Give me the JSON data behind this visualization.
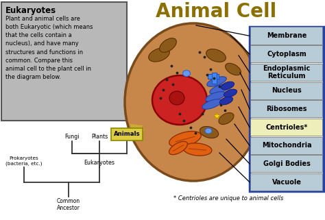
{
  "title": "Animal Cell",
  "title_color": "#8B7000",
  "title_fontsize": 20,
  "bg_color": "#ffffff",
  "cell_outer_color": "#C8874A",
  "cell_inner_color": "#DFA878",
  "nucleus_color": "#CC2222",
  "eukaryotes_box_color": "#B8B8B8",
  "eukaryotes_title": "Eukaryotes",
  "eukaryotes_text": "Plant and animal cells are\nboth Eukaryotic (which means\nthat the cells contain a\nnucleus), and have many\nstructures and functions in\ncommon. Compare this\nanimal cell to the plant cell in\nthe diagram below.",
  "legend_box_color": "#2244AA",
  "legend_items": [
    {
      "label": "Membrane",
      "bg": "#B8CCD8"
    },
    {
      "label": "Cytoplasm",
      "bg": "#B8CCD8"
    },
    {
      "label": "Endoplasmic\nReticulum",
      "bg": "#B8CCD8"
    },
    {
      "label": "Nucleus",
      "bg": "#B8CCD8"
    },
    {
      "label": "Ribosomes",
      "bg": "#B8CCD8"
    },
    {
      "label": "Centrioles*",
      "bg": "#EEEEBB"
    },
    {
      "label": "Mitochondria",
      "bg": "#B8CCD8"
    },
    {
      "label": "Golgi Bodies",
      "bg": "#B8CCD8"
    },
    {
      "label": "Vacuole",
      "bg": "#B8CCD8"
    }
  ],
  "footnote": "* Centrioles are unique to animal cells",
  "animals_box_color": "#DDCC44",
  "animals_box_edge": "#888800",
  "arrow_color": "#CCAA33",
  "tree_color": "#333333"
}
